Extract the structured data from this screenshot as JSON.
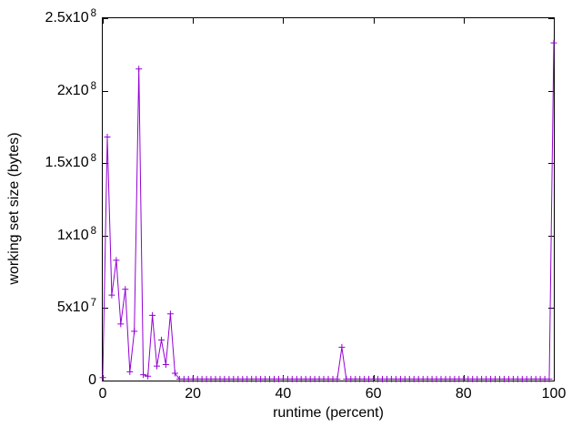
{
  "chart_data": {
    "type": "line",
    "title": "",
    "xlabel": "runtime (percent)",
    "ylabel": "working set size (bytes)",
    "xlim": [
      0,
      100
    ],
    "ylim": [
      0,
      250000000
    ],
    "grid": false,
    "legend": "none",
    "marker": "plus",
    "line_color": "#9400d3",
    "axis_color": "#000000",
    "background": "#ffffff",
    "xticks": [
      {
        "value": 0,
        "label": "0"
      },
      {
        "value": 20,
        "label": "20"
      },
      {
        "value": 40,
        "label": "40"
      },
      {
        "value": 60,
        "label": "60"
      },
      {
        "value": 80,
        "label": "80"
      },
      {
        "value": 100,
        "label": "100"
      }
    ],
    "yticks": [
      {
        "value": 0,
        "base": "0",
        "exp": ""
      },
      {
        "value": 50000000,
        "base": "5x10",
        "exp": "7"
      },
      {
        "value": 100000000,
        "base": "1x10",
        "exp": "8"
      },
      {
        "value": 150000000,
        "base": "1.5x10",
        "exp": "8"
      },
      {
        "value": 200000000,
        "base": "2x10",
        "exp": "8"
      },
      {
        "value": 250000000,
        "base": "2.5x10",
        "exp": "8"
      }
    ],
    "series": [
      {
        "name": "working set size",
        "x_start": 0,
        "x_step": 1,
        "values": [
          2000000,
          168000000,
          59000000,
          83000000,
          39000000,
          63000000,
          6000000,
          34000000,
          215000000,
          4000000,
          3000000,
          45000000,
          10000000,
          28000000,
          11000000,
          46000000,
          5000000,
          1000000,
          1000000,
          1000000,
          1000000,
          1000000,
          1000000,
          1000000,
          1000000,
          1000000,
          1000000,
          1000000,
          1000000,
          1000000,
          1000000,
          1000000,
          1000000,
          1000000,
          1000000,
          1000000,
          1000000,
          1000000,
          1000000,
          1000000,
          1000000,
          1000000,
          1000000,
          1000000,
          1000000,
          1000000,
          1000000,
          1000000,
          1000000,
          1000000,
          1000000,
          1000000,
          1000000,
          23000000,
          1000000,
          1000000,
          1000000,
          1000000,
          1000000,
          1000000,
          1000000,
          1000000,
          1000000,
          1000000,
          1000000,
          1000000,
          1000000,
          1000000,
          1000000,
          1000000,
          1000000,
          1000000,
          1000000,
          1000000,
          1000000,
          1000000,
          1000000,
          1000000,
          1000000,
          1000000,
          1000000,
          1000000,
          1000000,
          1000000,
          1000000,
          1000000,
          1000000,
          1000000,
          1000000,
          1000000,
          1000000,
          1000000,
          1000000,
          1000000,
          1000000,
          1000000,
          1000000,
          1000000,
          1000000,
          1000000,
          233000000
        ]
      }
    ]
  }
}
